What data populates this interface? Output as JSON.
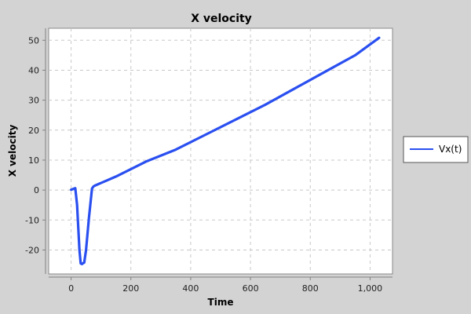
{
  "chart_data": {
    "type": "line",
    "title": "X velocity",
    "xlabel": "Time",
    "ylabel": "X velocity",
    "xlim": [
      -75,
      1075
    ],
    "ylim": [
      -28,
      54
    ],
    "x_ticks": [
      0,
      200,
      400,
      600,
      800,
      1000
    ],
    "x_tick_labels": [
      "0",
      "200",
      "400",
      "600",
      "800",
      "1,000"
    ],
    "y_ticks": [
      -20,
      -10,
      0,
      10,
      20,
      30,
      40,
      50
    ],
    "y_tick_labels": [
      "-20",
      "-10",
      "0",
      "10",
      "20",
      "30",
      "40",
      "50"
    ],
    "grid": true,
    "legend_placement": "right",
    "series": [
      {
        "name": "Vx(t)",
        "color": "#2a4ff0",
        "x": [
          0,
          5,
          10,
          14,
          20,
          28,
          32,
          36,
          40,
          44,
          50,
          60,
          70,
          75,
          80,
          150,
          250,
          350,
          450,
          550,
          650,
          750,
          850,
          950,
          1030
        ],
        "y": [
          0.1,
          0.3,
          0.5,
          0.6,
          -5,
          -20,
          -24.5,
          -24.7,
          -24.4,
          -24.2,
          -20,
          -9,
          0.5,
          1.2,
          1.5,
          4.5,
          9.5,
          13.5,
          18.5,
          23.5,
          28.5,
          34,
          39.5,
          45,
          50.8
        ]
      }
    ]
  }
}
